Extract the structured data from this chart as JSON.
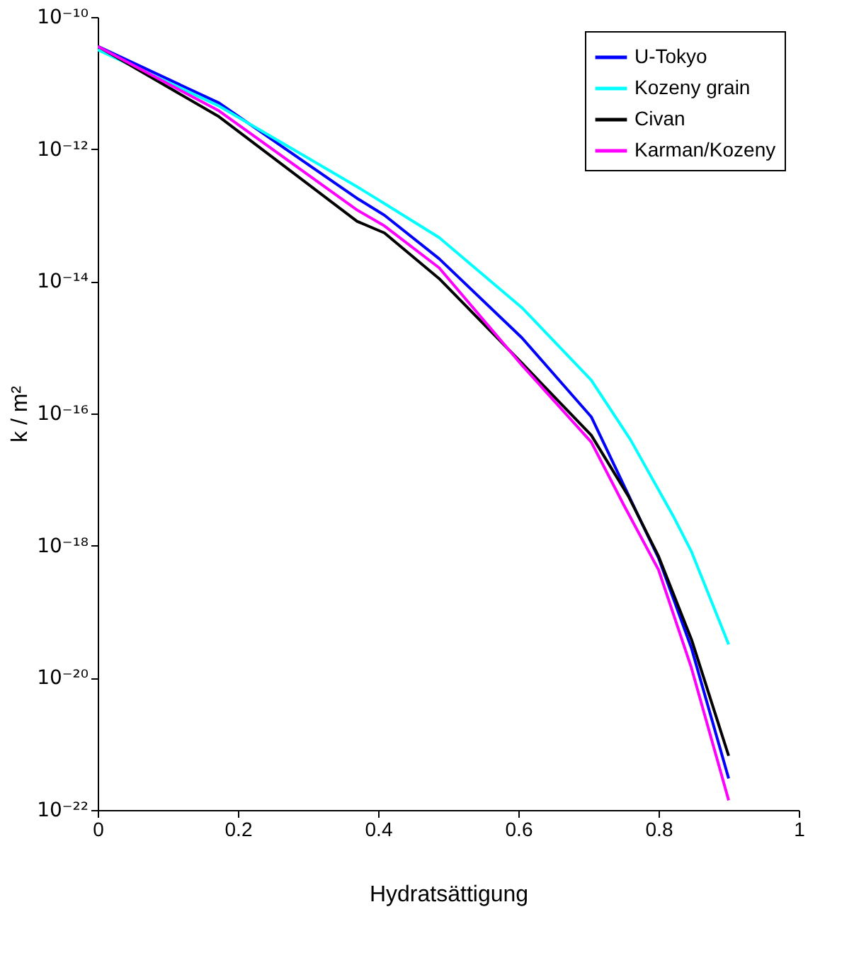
{
  "chart_data": {
    "type": "line",
    "xlabel": "Hydratsättigung",
    "ylabel": "k / m²",
    "log": "y",
    "xlim": [
      0,
      1
    ],
    "xticks": [
      0,
      0.2,
      0.4,
      0.6,
      0.8,
      1
    ],
    "ylim": [
      1e-22,
      1e-10
    ],
    "yticks": [
      {
        "value": 1e-22,
        "label": "10⁻²²"
      },
      {
        "value": 1e-20,
        "label": "10⁻²⁰"
      },
      {
        "value": 1e-18,
        "label": "10⁻¹⁸"
      },
      {
        "value": 1e-16,
        "label": "10⁻¹⁶"
      },
      {
        "value": 1e-14,
        "label": "10⁻¹⁴"
      },
      {
        "value": 1e-12,
        "label": "10⁻¹²"
      },
      {
        "value": 1e-10,
        "label": "10⁻¹⁰"
      }
    ],
    "grid": false,
    "legend": "top right",
    "marker": "none",
    "line_style": "solid",
    "series": [
      {
        "name": "U-Tokyo",
        "color": "#0000ff",
        "x": [
          0,
          0.173,
          0.37,
          0.409,
          0.487,
          0.605,
          0.704,
          0.776,
          0.8,
          0.847,
          0.9
        ],
        "values": [
          3.6e-11,
          5e-12,
          1.8e-13,
          1e-13,
          2.2e-14,
          1.4e-15,
          8.9e-17,
          2.2e-18,
          6.5e-19,
          2.8e-20,
          3e-22
        ]
      },
      {
        "name": "Kozeny grain",
        "color": "#00ffff",
        "x": [
          0,
          0.173,
          0.37,
          0.409,
          0.487,
          0.605,
          0.704,
          0.76,
          0.821,
          0.847,
          0.9
        ],
        "values": [
          3.2e-11,
          4.5e-12,
          2.7e-13,
          1.5e-13,
          4.6e-14,
          4e-15,
          3.2e-16,
          4e-17,
          2.8e-18,
          8.1e-19,
          3.2e-20
        ]
      },
      {
        "name": "Civan",
        "color": "#000000",
        "x": [
          0,
          0.173,
          0.37,
          0.409,
          0.487,
          0.605,
          0.704,
          0.757,
          0.8,
          0.847,
          0.9
        ],
        "values": [
          3.6e-11,
          3.1e-12,
          8.1e-14,
          5.4e-14,
          1.1e-14,
          5.8e-16,
          4.7e-17,
          5.6e-18,
          6.9e-19,
          3.8e-20,
          6.6e-22
        ]
      },
      {
        "name": "Karman/Kozeny",
        "color": "#ff00ff",
        "x": [
          0,
          0.173,
          0.37,
          0.409,
          0.487,
          0.605,
          0.704,
          0.75,
          0.8,
          0.847,
          0.9
        ],
        "values": [
          3.6e-11,
          3.8e-12,
          1.2e-13,
          6.9e-14,
          1.6e-14,
          5.4e-16,
          3.7e-17,
          4.2e-18,
          4.3e-19,
          1.4e-20,
          1.4e-22
        ]
      }
    ]
  }
}
